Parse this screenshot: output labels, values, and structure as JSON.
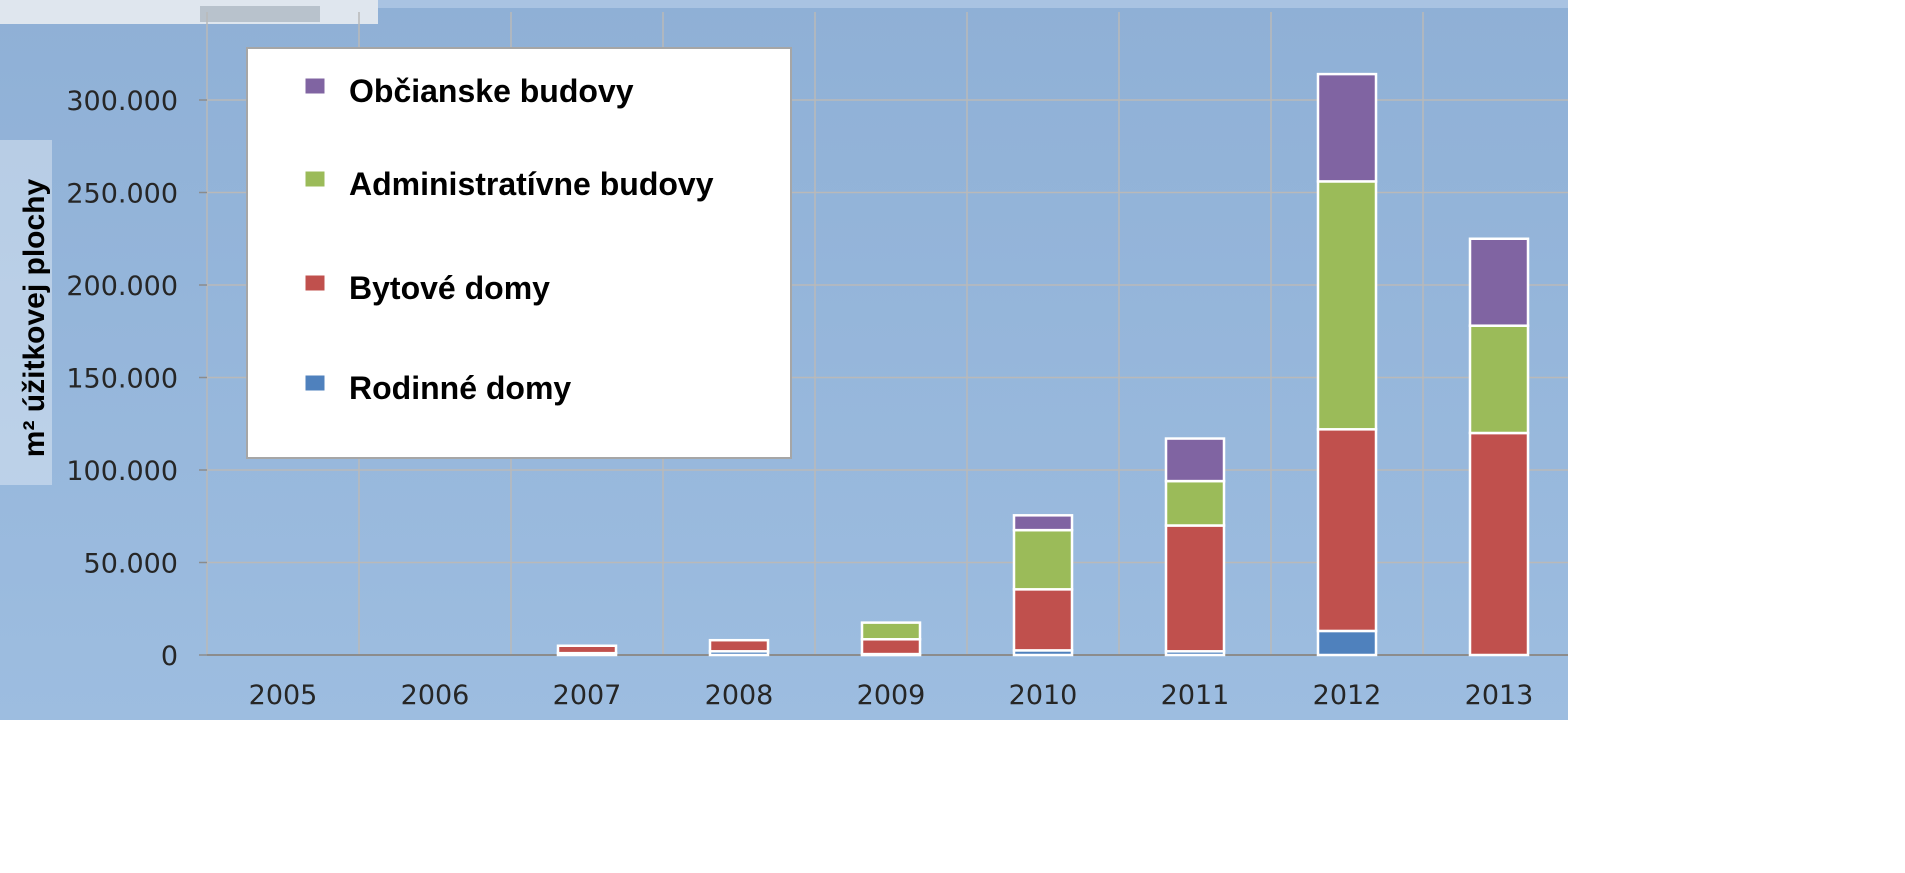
{
  "chart_data": {
    "type": "bar",
    "stacked": true,
    "title": "",
    "xlabel": "",
    "ylabel": "m² úžitkovej plochy",
    "categories": [
      "2005",
      "2006",
      "2007",
      "2008",
      "2009",
      "2010",
      "2011",
      "2012",
      "2013"
    ],
    "ylim": [
      0,
      320000
    ],
    "yticks": [
      0,
      50000,
      100000,
      150000,
      200000,
      250000,
      300000
    ],
    "ytick_labels": [
      "0",
      "50.000",
      "100.000",
      "150.000",
      "200.000",
      "250.000",
      "300.000"
    ],
    "grid": true,
    "legend_position": "top-left",
    "series": [
      {
        "name": "Rodinné domy",
        "color": "#4f81bd",
        "values": [
          0,
          0,
          1000,
          2000,
          500,
          2500,
          2000,
          13000,
          0
        ]
      },
      {
        "name": "Bytové domy",
        "color": "#c0504d",
        "values": [
          0,
          0,
          4000,
          6000,
          8000,
          33000,
          68000,
          109000,
          120000
        ]
      },
      {
        "name": "Administratívne budovy",
        "color": "#9bbb59",
        "values": [
          0,
          0,
          0,
          0,
          9000,
          32000,
          24000,
          134000,
          58000
        ]
      },
      {
        "name": "Občianske budovy",
        "color": "#8064a2",
        "values": [
          0,
          0,
          0,
          0,
          0,
          8000,
          23000,
          58000,
          47000
        ]
      }
    ],
    "legend_order": [
      3,
      2,
      1,
      0
    ]
  }
}
